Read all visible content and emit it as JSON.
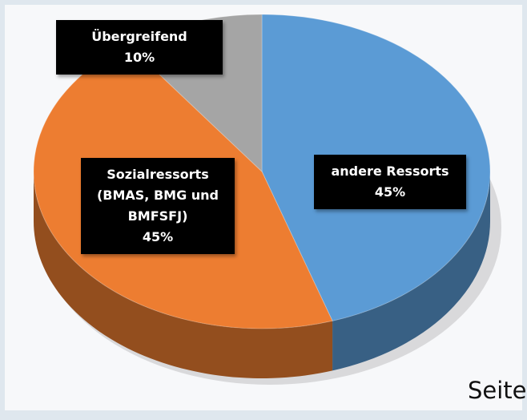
{
  "chart_data": {
    "type": "pie",
    "categories": [
      "andere Ressorts",
      "Sozialressorts (BMAS, BMG und BMFSFJ)",
      "Übergreifend"
    ],
    "values": [
      45,
      45,
      10
    ],
    "value_labels": [
      "45%",
      "45%",
      "10%"
    ],
    "colors": [
      "#5b9bd5",
      "#ed7d31",
      "#a5a5a5"
    ],
    "annotation": "Seite"
  }
}
